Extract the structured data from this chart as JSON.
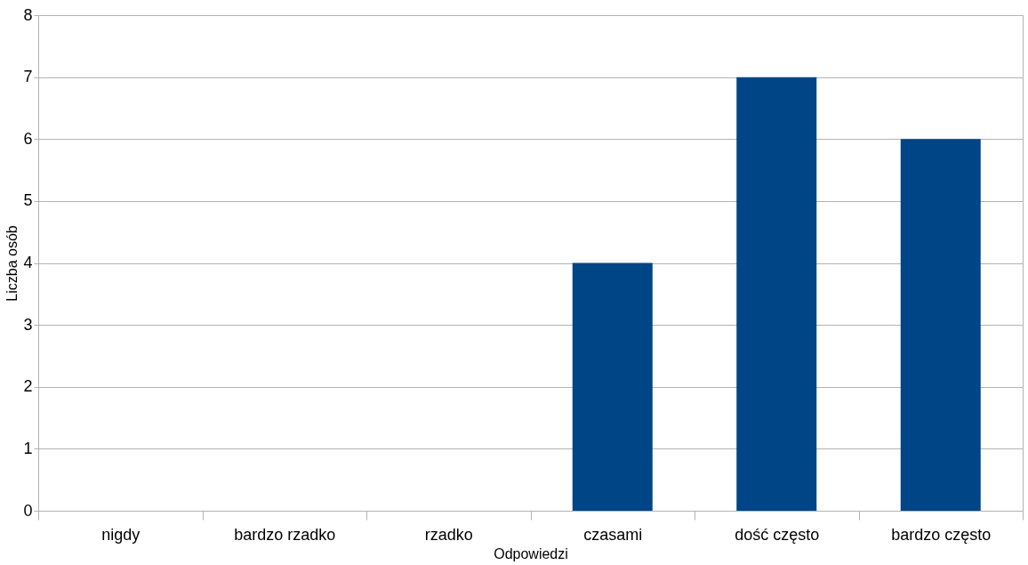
{
  "chart_data": {
    "type": "bar",
    "xlabel": "Odpowiedzi",
    "ylabel": "Liczba osób",
    "categories": [
      "nigdy",
      "bardzo rzadko",
      "rzadko",
      "czasami",
      "dość często",
      "bardzo często"
    ],
    "values": [
      0,
      0,
      0,
      4,
      7,
      6
    ],
    "color": "#004586",
    "ylim": [
      0,
      8
    ],
    "yticks": [
      0,
      1,
      2,
      3,
      4,
      5,
      6,
      7,
      8
    ],
    "grid": "y"
  }
}
